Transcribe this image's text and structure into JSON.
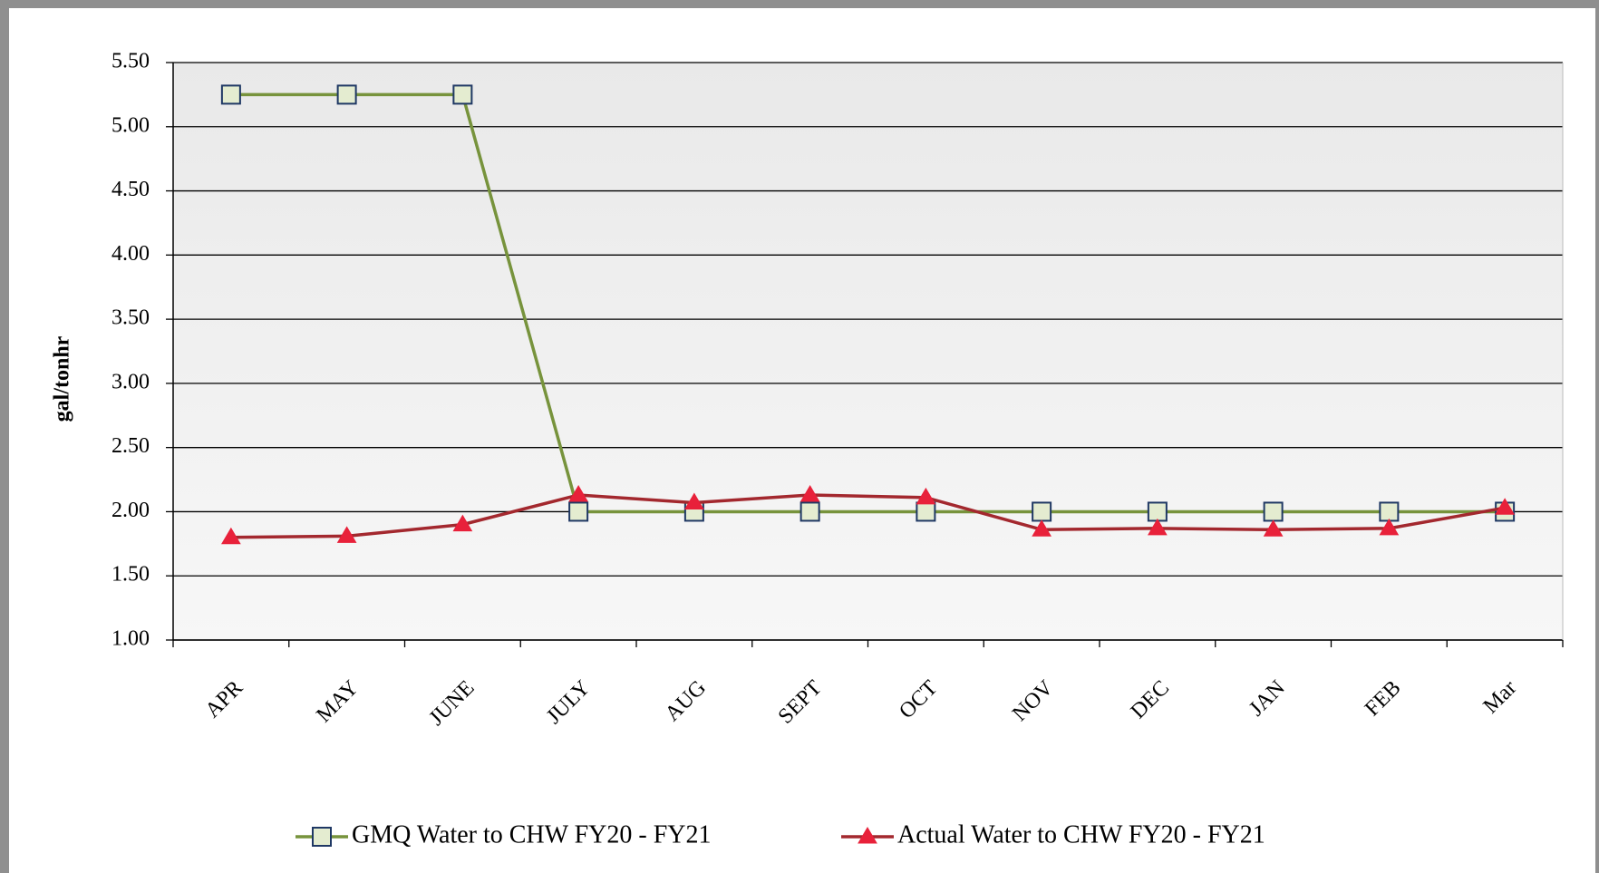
{
  "chart_data": {
    "type": "line",
    "y_label": "gal/tonhr",
    "categories": [
      "APR",
      "MAY",
      "JUNE",
      "JULY",
      "AUG",
      "SEPT",
      "OCT",
      "NOV",
      "DEC",
      "JAN",
      "FEB",
      "Mar"
    ],
    "series": [
      {
        "name": "GMQ Water to CHW FY20 - FY21",
        "color": "#77933c",
        "marker": "square",
        "marker_fill": "#e4ecd0",
        "marker_stroke": "#1f3864",
        "values": [
          5.25,
          5.25,
          5.25,
          2.0,
          2.0,
          2.0,
          2.0,
          2.0,
          2.0,
          2.0,
          2.0,
          2.0
        ]
      },
      {
        "name": "Actual Water to CHW FY20 - FY21",
        "color": "#a3282e",
        "marker": "triangle",
        "marker_fill": "#e8213a",
        "marker_stroke": "#e8213a",
        "values": [
          1.8,
          1.81,
          1.9,
          2.13,
          2.07,
          2.13,
          2.11,
          1.86,
          1.87,
          1.86,
          1.87,
          2.03
        ]
      }
    ],
    "ylim": [
      1.0,
      5.5
    ],
    "yticks": [
      {
        "value": 1.0,
        "label": "1.00"
      },
      {
        "value": 1.5,
        "label": "1.50"
      },
      {
        "value": 2.0,
        "label": "2.00"
      },
      {
        "value": 2.5,
        "label": "2.50"
      },
      {
        "value": 3.0,
        "label": "3.00"
      },
      {
        "value": 3.5,
        "label": "3.50"
      },
      {
        "value": 4.0,
        "label": "4.00"
      },
      {
        "value": 4.5,
        "label": "4.50"
      },
      {
        "value": 5.0,
        "label": "5.00"
      },
      {
        "value": 5.5,
        "label": "5.50"
      }
    ],
    "grid": true,
    "legend": "bottom"
  }
}
